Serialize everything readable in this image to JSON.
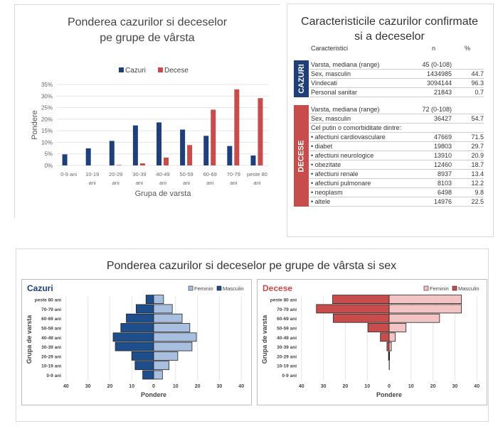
{
  "chart_data": [
    {
      "type": "bar",
      "title": "Ponderea cazurilor si deceselor pe grupe de vârsta",
      "title_lines": [
        "Ponderea cazurilor si deceselor",
        "pe grupe de vârsta"
      ],
      "xlabel": "Grupa de varsta",
      "ylabel": "Pondere",
      "ylim": [
        0,
        35
      ],
      "yticks": [
        "0%",
        "5%",
        "10%",
        "15%",
        "20%",
        "25%",
        "30%",
        "35%"
      ],
      "legend": "top",
      "grid": true,
      "categories": [
        [
          "0-9 ani"
        ],
        [
          "10-19",
          "ani"
        ],
        [
          "20-29",
          "ani"
        ],
        [
          "30-39",
          "ani"
        ],
        [
          "40-49",
          "ani"
        ],
        [
          "50-59",
          "ani"
        ],
        [
          "60-69",
          "ani"
        ],
        [
          "70-79",
          "ani"
        ],
        [
          "peste 80",
          "ani"
        ]
      ],
      "series": [
        {
          "name": "Cazuri",
          "color": "#1f3f7a",
          "values": [
            4.8,
            7.4,
            10.6,
            17.3,
            18.6,
            15.5,
            12.8,
            8.4,
            4.3
          ]
        },
        {
          "name": "Decese",
          "color": "#c94c4c",
          "values": [
            0,
            0,
            0.2,
            0.9,
            3.4,
            8.8,
            24.1,
            32.9,
            29.1
          ]
        }
      ]
    },
    {
      "type": "bar",
      "title": "Cazuri",
      "xlabel": "Pondere",
      "ylabel": "Grupa de varsta",
      "xlim": [
        -40,
        40
      ],
      "xticks": [
        "40",
        "30",
        "20",
        "10",
        "0",
        "10",
        "20",
        "30",
        "40"
      ],
      "legend": "top-right",
      "categories": [
        "0-9 ani",
        "10-19 ani",
        "20-29 ani",
        "30-39 ani",
        "40-49 ani",
        "50-59 ani",
        "60-69 ani",
        "70-79 ani",
        "peste 80 ani"
      ],
      "series": [
        {
          "name": "Feminin",
          "color": "#a9bfdf",
          "values": [
            4,
            7,
            11,
            17.5,
            19.5,
            16.5,
            13,
            8.5,
            4.5
          ]
        },
        {
          "name": "Masculin",
          "color": "#1f4e8c",
          "values": [
            5,
            8.5,
            10,
            17.5,
            18.5,
            15,
            12.5,
            8,
            3.5
          ]
        }
      ]
    },
    {
      "type": "bar",
      "title": "Decese",
      "xlabel": "Pondere",
      "ylabel": "Grupa de varsta",
      "xlim": [
        -40,
        40
      ],
      "xticks": [
        "40",
        "30",
        "20",
        "10",
        "0",
        "10",
        "20",
        "30",
        "40"
      ],
      "legend": "top-right",
      "categories": [
        "0-9 ani",
        "10-19 ani",
        "20-29 ani",
        "30-39 ani",
        "40-49 ani",
        "50-59 ani",
        "60-69 ani",
        "70-79 ani",
        "peste 80 ani"
      ],
      "series": [
        {
          "name": "Feminin",
          "color": "#f2c4c4",
          "values": [
            0,
            0.1,
            0.2,
            1,
            2.8,
            7.7,
            23,
            33,
            33
          ]
        },
        {
          "name": "Masculin",
          "color": "#c94c4c",
          "values": [
            0,
            0,
            0.3,
            1,
            4,
            9.7,
            25.5,
            33.2,
            25.8
          ]
        }
      ]
    }
  ],
  "bottom_title": "Ponderea cazurilor si deceselor pe grupe de vârsta si sex",
  "table": {
    "title": [
      "Caracteristicile cazurilor confirmate",
      "si a deceselor"
    ],
    "headers": [
      "Caracteristici",
      "n",
      "%"
    ],
    "cazuri": {
      "label": "CAZURI",
      "color": "#1f3f7a",
      "rows": [
        [
          "Varsta, mediana (range)",
          "45 (0-108)",
          ""
        ],
        [
          "Sex, masculin",
          "1434985",
          "44.7"
        ],
        [
          "Vindecati",
          "3094144",
          "96.3"
        ],
        [
          "Personal sanitar",
          "21843",
          "0.7"
        ]
      ]
    },
    "decese": {
      "label": "DECESE",
      "color": "#c94c4c",
      "rows": [
        [
          "Varsta, mediana (range)",
          "72 (0-108)",
          ""
        ],
        [
          "Sex, masculin",
          "36427",
          "54.7"
        ],
        [
          "Cel putin o comorbiditate dintre:",
          "",
          ""
        ],
        [
          "• afectiuni cardiovasculare",
          "47669",
          "71.5"
        ],
        [
          "• diabet",
          "19803",
          "29.7"
        ],
        [
          "• afectiuni neurologice",
          "13910",
          "20.9"
        ],
        [
          "• obezitate",
          "12460",
          "18.7"
        ],
        [
          "• afectiuni renale",
          "8937",
          "13.4"
        ],
        [
          "• afectiuni pulmonare",
          "8103",
          "12.2"
        ],
        [
          "• neoplasm",
          "6498",
          "9.8"
        ],
        [
          "• altele",
          "14976",
          "22.5"
        ]
      ]
    }
  }
}
